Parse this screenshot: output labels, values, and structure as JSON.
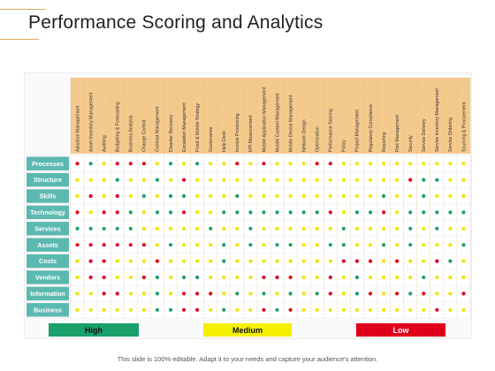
{
  "title": "Performance Scoring and Analytics",
  "columns": [
    "Adoption Management",
    "Asset Inventory Management",
    "Auditing",
    "Budgeting & Forecasting",
    "Business Analysis",
    "Change Control",
    "Contract Management",
    "Disaster Recovery",
    "Escalation Management",
    "Fixed & Mobile Strategy",
    "Governance",
    "Help Desk",
    "Invoice Processing",
    "KPI Measurement",
    "Mobile Application Management",
    "Mobile Content Management",
    "Mobile Device Management",
    "Network Design",
    "Optimization",
    "Performance Scoring",
    "Policy",
    "Project Management",
    "Regulatory Compliance",
    "Reporting",
    "Risk Management",
    "Security",
    "Service Delivery",
    "Service Inventory Management",
    "Service Ordering",
    "Sourcing & Procurement"
  ],
  "rows": [
    "Processes",
    "Structure",
    "Skills",
    "Technology",
    "Services",
    "Assets",
    "Costs",
    "Vendors",
    "Information",
    "Business"
  ],
  "matrix": [
    "RGYRRRYGYGYYRYRYYYRRYYYYYYYYYY",
    "YYYGYYGYRYYYYYYYYYYYYYYYYRGGYY",
    "YRYRYGYGGYYYGYYYYYYYYYYGYYGYYY",
    "RYRRGYGGRYYGGGGGGGGRYGGRYGGGGG",
    "GGGGGYYYYYGYYGYYYYYYGYYYYGYGYY",
    "RRRRRRYGYYYGYGYGGYYGGYYGYGYYYG",
    "YRRYYYRYYYYGYYYYYYYYRRRYRYYRGY",
    "YRRYYRGYGGYYYYRRRYYRYGYYYYGYYY",
    "YYRRYYGYRRRYGYGYGYGRYGRYRGRYYR",
    "YYYYYYGGRRYGYYRGRYYYYYYYYYYRYY"
  ],
  "legend": {
    "high": "High",
    "medium": "Medium",
    "low": "Low"
  },
  "colors": {
    "high": "#1aa06a",
    "medium": "#f0e400",
    "low": "#e0001b",
    "header": "#f4c98c",
    "row_label": "#5bb9b0"
  },
  "footer": "This slide is 100% editable. Adapt it to your needs and capture your audience's attention."
}
